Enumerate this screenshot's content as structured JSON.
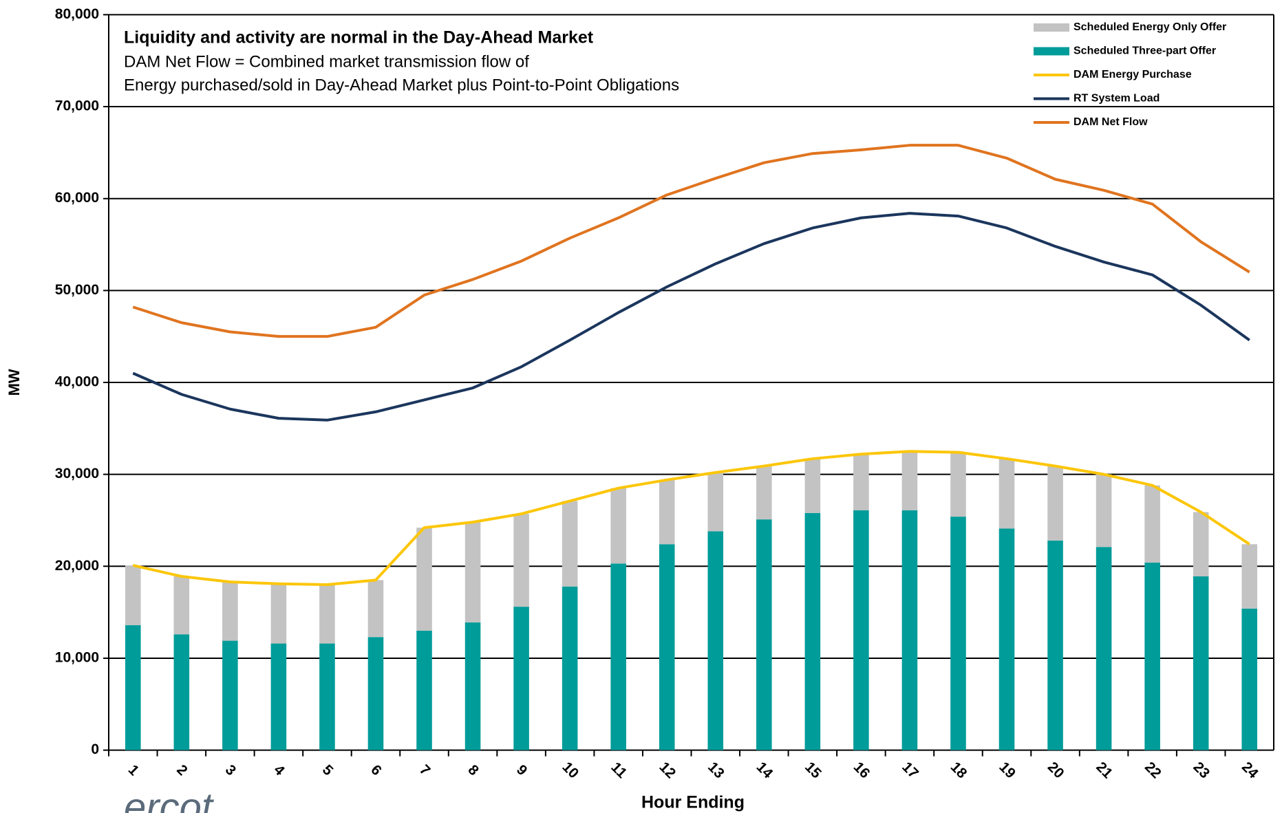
{
  "chart_data": {
    "type": "bar",
    "title": "Liquidity and activity are normal in the Day-Ahead Market",
    "annotations": [
      "DAM Net Flow = Combined market transmission flow of",
      "Energy purchased/sold in Day-Ahead Market plus Point-to-Point Obligations"
    ],
    "logo": "ercot",
    "x_label": "Hour Ending",
    "y_label": "MW",
    "categories": [
      "1",
      "2",
      "3",
      "4",
      "5",
      "6",
      "7",
      "8",
      "9",
      "10",
      "11",
      "12",
      "13",
      "14",
      "15",
      "16",
      "17",
      "18",
      "19",
      "20",
      "21",
      "22",
      "23",
      "24"
    ],
    "series": [
      {
        "name": "Scheduled Energy Only Offer",
        "kind": "bar",
        "stack": 1,
        "color": "#c3c3c3",
        "values": [
          6500,
          6300,
          6400,
          6500,
          6400,
          6200,
          11200,
          10900,
          10100,
          9300,
          8200,
          7000,
          6400,
          5800,
          5900,
          6100,
          6400,
          7000,
          7600,
          8100,
          7900,
          8400,
          7000,
          7000
        ]
      },
      {
        "name": "Scheduled Three-part Offer",
        "kind": "bar",
        "stack": 0,
        "color": "#009c9a",
        "values": [
          13600,
          12600,
          11900,
          11600,
          11600,
          12300,
          13000,
          13900,
          15600,
          17800,
          20300,
          22400,
          23800,
          25100,
          25800,
          26100,
          26100,
          25400,
          24100,
          22800,
          22100,
          20400,
          18900,
          15400
        ]
      },
      {
        "name": "DAM Energy Purchase",
        "kind": "line",
        "color": "#fcc60a",
        "values": [
          20100,
          18900,
          18300,
          18100,
          18000,
          18500,
          24200,
          24800,
          25700,
          27100,
          28500,
          29400,
          30200,
          30900,
          31700,
          32200,
          32500,
          32400,
          31700,
          30900,
          30000,
          28800,
          25900,
          22400
        ]
      },
      {
        "name": "RT System Load",
        "kind": "line",
        "color": "#1b365d",
        "values": [
          41000,
          38700,
          37100,
          36100,
          35900,
          36800,
          38100,
          39400,
          41700,
          44600,
          47600,
          50400,
          52900,
          55100,
          56800,
          57900,
          58400,
          58100,
          56800,
          54800,
          53100,
          51700,
          48400,
          44600
        ]
      },
      {
        "name": "DAM Net Flow",
        "kind": "line",
        "color": "#e0741f",
        "values": [
          48200,
          46500,
          45500,
          45000,
          45000,
          46000,
          49500,
          51200,
          53200,
          55700,
          57900,
          60400,
          62200,
          63900,
          64900,
          65300,
          65800,
          65800,
          64400,
          62100,
          60900,
          59400,
          55300,
          52000
        ]
      }
    ],
    "ylim": [
      0,
      80000
    ],
    "yticks": [
      0,
      {
        "value": 10000,
        "label": "10,000"
      },
      {
        "value": 20000,
        "label": "20,000"
      },
      {
        "value": 30000,
        "label": "30,000"
      },
      {
        "value": 40000,
        "label": "40,000"
      },
      {
        "value": 50000,
        "label": "50,000"
      },
      {
        "value": 60000,
        "label": "60,000"
      },
      {
        "value": 70000,
        "label": "70,000"
      },
      {
        "value": 80000,
        "label": "80,000"
      }
    ],
    "grid": true,
    "legend": "top-right"
  }
}
